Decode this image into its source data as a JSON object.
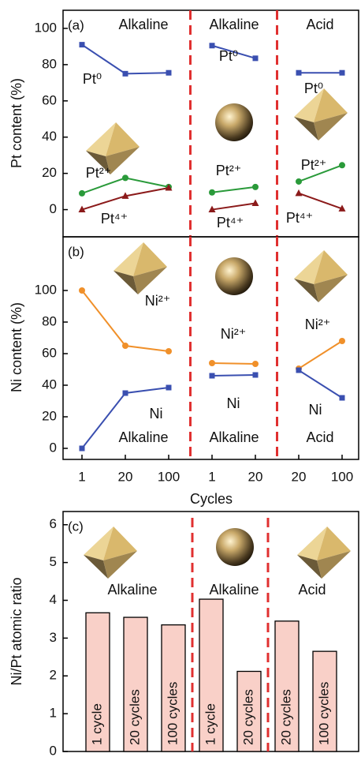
{
  "chart_data": [
    {
      "type": "line",
      "panel_label": "(a)",
      "ylabel": "Pt content (%)",
      "ylim": [
        -15,
        110
      ],
      "yticks": [
        0,
        20,
        40,
        60,
        80,
        100
      ],
      "group_labels": [
        "Alkaline",
        "Alkaline",
        "Acid"
      ],
      "series": [
        {
          "name": "Pt⁰",
          "color": "#3a4fb0",
          "marker": "square",
          "values": [
            91,
            75,
            75.5,
            null,
            90.5,
            83.5,
            null,
            75.5,
            75.5
          ]
        },
        {
          "name": "Pt²⁺",
          "color": "#2a9a3a",
          "marker": "circle",
          "values": [
            9,
            17.5,
            12.5,
            null,
            9.5,
            12.5,
            null,
            15.5,
            24.5
          ]
        },
        {
          "name": "Pt⁴⁺",
          "color": "#8b1a1a",
          "marker": "triangle",
          "values": [
            0,
            7.5,
            12,
            null,
            0,
            3.5,
            null,
            9,
            0.5
          ]
        }
      ]
    },
    {
      "type": "line",
      "panel_label": "(b)",
      "ylabel": "Ni content (%)",
      "xlabel": "Cycles",
      "categories": [
        "1",
        "20",
        "100",
        null,
        "1",
        "20",
        null,
        "20",
        "100"
      ],
      "ylim": [
        -7,
        134
      ],
      "yticks": [
        0,
        20,
        40,
        60,
        80,
        100
      ],
      "group_labels": [
        "Alkaline",
        "Alkaline",
        "Acid"
      ],
      "series": [
        {
          "name": "Ni²⁺",
          "color": "#f0902a",
          "marker": "circle",
          "values": [
            100,
            65,
            61.5,
            null,
            54,
            53.5,
            null,
            50.5,
            68
          ]
        },
        {
          "name": "Ni",
          "color": "#3a4fb0",
          "marker": "square",
          "values": [
            0,
            35,
            38.5,
            null,
            46,
            46.5,
            null,
            49.5,
            32
          ]
        }
      ]
    },
    {
      "type": "bar",
      "panel_label": "(c)",
      "ylabel": "Ni/Pt atomic ratio",
      "categories": [
        "1 cycle",
        "20 cycles",
        "100 cycles",
        null,
        "1 cycle",
        "20 cycles",
        null,
        "20 cycles",
        "100 cycles"
      ],
      "values": [
        3.67,
        3.55,
        3.35,
        null,
        4.03,
        2.12,
        null,
        3.45,
        2.65
      ],
      "color": "#f9d0c8",
      "ylim": [
        0,
        6.35
      ],
      "yticks": [
        0,
        1,
        2,
        3,
        4,
        5,
        6
      ],
      "group_labels": [
        "Alkaline",
        "Alkaline",
        "Acid"
      ]
    }
  ]
}
